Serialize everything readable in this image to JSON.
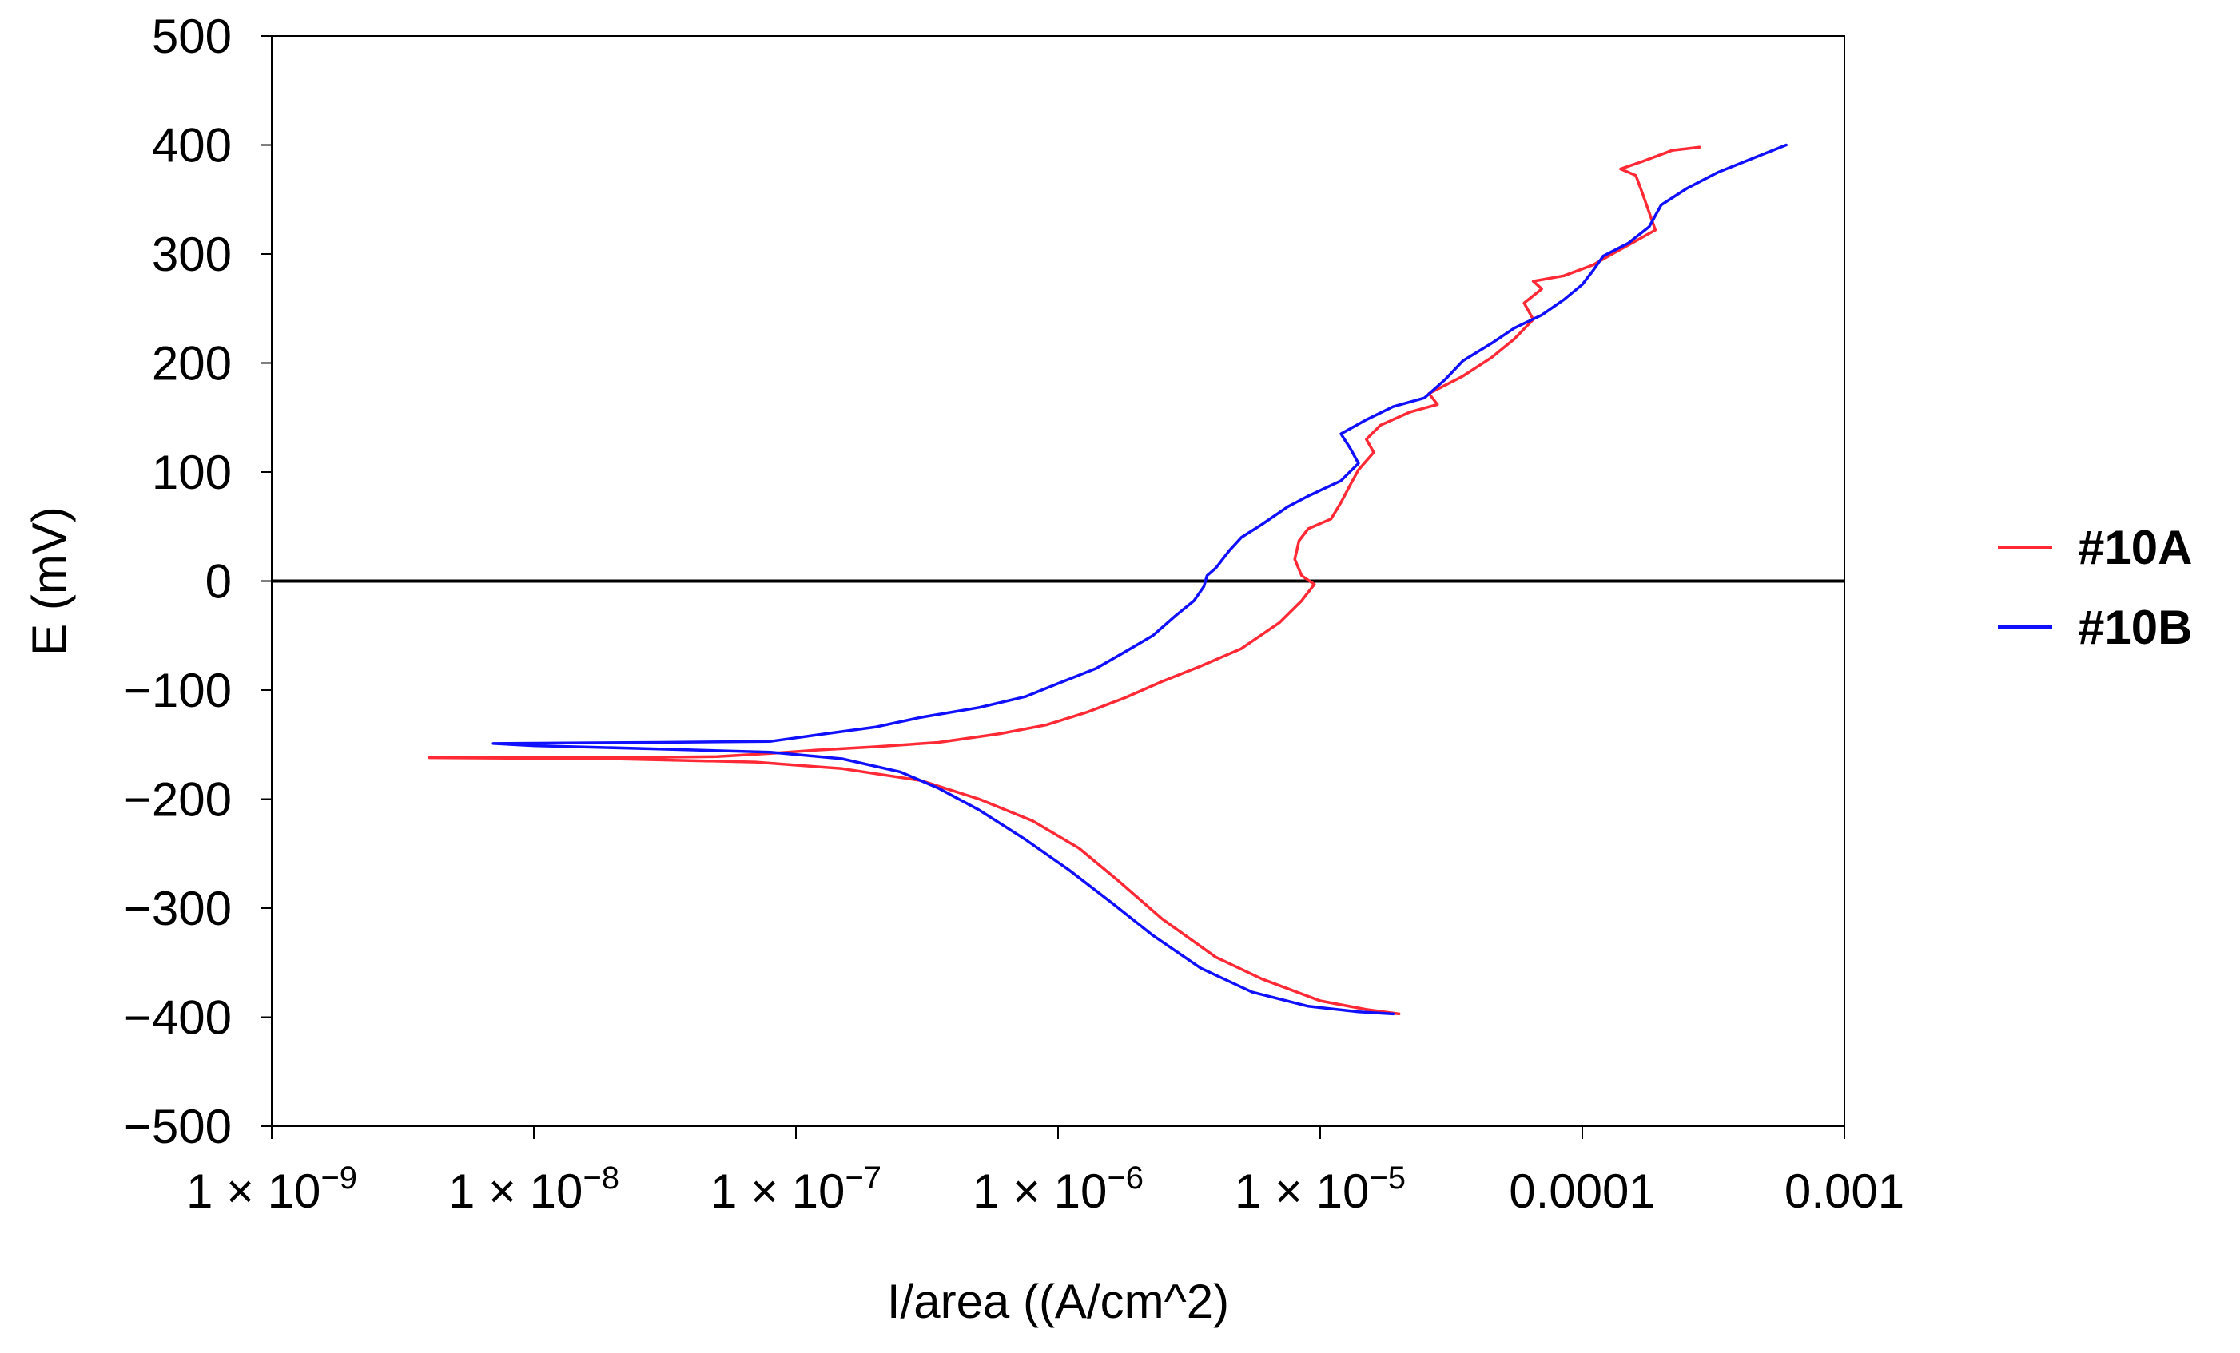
{
  "chart_data": {
    "type": "line",
    "title": "",
    "xlabel": "I/area ((A/cm^2)",
    "ylabel": "E (mV)",
    "xscale": "log",
    "xlim": [
      1e-09,
      0.001
    ],
    "ylim": [
      -500,
      500
    ],
    "x_ticks": [
      {
        "value": 1e-09,
        "base": "1 × 10",
        "exp": "−9"
      },
      {
        "value": 1e-08,
        "base": "1 × 10",
        "exp": "−8"
      },
      {
        "value": 1e-07,
        "base": "1 × 10",
        "exp": "−7"
      },
      {
        "value": 1e-06,
        "base": "1 × 10",
        "exp": "−6"
      },
      {
        "value": 1e-05,
        "base": "1 × 10",
        "exp": "−5"
      },
      {
        "value": 0.0001,
        "base": "0.0001",
        "exp": ""
      },
      {
        "value": 0.001,
        "base": "0.001",
        "exp": ""
      }
    ],
    "y_ticks": [
      {
        "value": 500,
        "label": "500"
      },
      {
        "value": 400,
        "label": "400"
      },
      {
        "value": 300,
        "label": "300"
      },
      {
        "value": 200,
        "label": "200"
      },
      {
        "value": 100,
        "label": "100"
      },
      {
        "value": 0,
        "label": "0"
      },
      {
        "value": -100,
        "label": "−100"
      },
      {
        "value": -200,
        "label": "−200"
      },
      {
        "value": -300,
        "label": "−300"
      },
      {
        "value": -400,
        "label": "−400"
      },
      {
        "value": -500,
        "label": "−500"
      }
    ],
    "reference_line": {
      "y": 0,
      "color": "#000000"
    },
    "legend": "right",
    "series": [
      {
        "name": "#10A",
        "color": "#ff2a35",
        "points": [
          [
            2e-05,
            -397
          ],
          [
            1.5e-05,
            -393
          ],
          [
            1e-05,
            -385
          ],
          [
            6e-06,
            -365
          ],
          [
            4e-06,
            -345
          ],
          [
            2.5e-06,
            -310
          ],
          [
            1.7e-06,
            -275
          ],
          [
            1.2e-06,
            -245
          ],
          [
            8e-07,
            -220
          ],
          [
            5e-07,
            -200
          ],
          [
            3e-07,
            -183
          ],
          [
            1.5e-07,
            -172
          ],
          [
            7e-08,
            -166
          ],
          [
            2e-08,
            -163
          ],
          [
            4e-09,
            -162
          ],
          [
            4e-09,
            -162
          ],
          [
            2e-08,
            -162
          ],
          [
            5e-08,
            -161
          ],
          [
            8e-08,
            -158
          ],
          [
            1.2e-07,
            -155
          ],
          [
            2e-07,
            -152
          ],
          [
            3.5e-07,
            -148
          ],
          [
            6e-07,
            -140
          ],
          [
            9e-07,
            -132
          ],
          [
            1.3e-06,
            -120
          ],
          [
            1.8e-06,
            -107
          ],
          [
            2.5e-06,
            -92
          ],
          [
            3.5e-06,
            -78
          ],
          [
            5e-06,
            -62
          ],
          [
            7e-06,
            -38
          ],
          [
            8.5e-06,
            -18
          ],
          [
            9.5e-06,
            -3
          ],
          [
            8.5e-06,
            5
          ],
          [
            8e-06,
            20
          ],
          [
            8.3e-06,
            37
          ],
          [
            9e-06,
            48
          ],
          [
            1.1e-05,
            57
          ],
          [
            1.2e-05,
            72
          ],
          [
            1.3e-05,
            88
          ],
          [
            1.4e-05,
            102
          ],
          [
            1.6e-05,
            118
          ],
          [
            1.5e-05,
            130
          ],
          [
            1.7e-05,
            143
          ],
          [
            2.2e-05,
            155
          ],
          [
            2.8e-05,
            162
          ],
          [
            2.6e-05,
            172
          ],
          [
            3.5e-05,
            188
          ],
          [
            4.5e-05,
            205
          ],
          [
            5.5e-05,
            222
          ],
          [
            6.5e-05,
            240
          ],
          [
            6e-05,
            255
          ],
          [
            7e-05,
            268
          ],
          [
            6.5e-05,
            275
          ],
          [
            8.5e-05,
            280
          ],
          [
            0.00011,
            290
          ],
          [
            0.00013,
            300
          ],
          [
            0.00016,
            312
          ],
          [
            0.00019,
            322
          ],
          [
            0.00018,
            338
          ],
          [
            0.00017,
            355
          ],
          [
            0.00016,
            372
          ],
          [
            0.00014,
            378
          ],
          [
            0.00017,
            385
          ],
          [
            0.00022,
            395
          ],
          [
            0.00028,
            398
          ]
        ]
      },
      {
        "name": "#10B",
        "color": "#1010ff",
        "points": [
          [
            1.9e-05,
            -397
          ],
          [
            1.4e-05,
            -395
          ],
          [
            9e-06,
            -390
          ],
          [
            5.5e-06,
            -377
          ],
          [
            3.5e-06,
            -355
          ],
          [
            2.3e-06,
            -325
          ],
          [
            1.6e-06,
            -295
          ],
          [
            1.1e-06,
            -265
          ],
          [
            7.5e-07,
            -237
          ],
          [
            5e-07,
            -210
          ],
          [
            3.5e-07,
            -190
          ],
          [
            2.5e-07,
            -175
          ],
          [
            1.5e-07,
            -163
          ],
          [
            8e-08,
            -157
          ],
          [
            3e-08,
            -154
          ],
          [
            1e-08,
            -151
          ],
          [
            7e-09,
            -149
          ],
          [
            3e-08,
            -148
          ],
          [
            8e-08,
            -147
          ],
          [
            1.3e-07,
            -140
          ],
          [
            2e-07,
            -134
          ],
          [
            3e-07,
            -125
          ],
          [
            5e-07,
            -116
          ],
          [
            7.5e-07,
            -106
          ],
          [
            1e-06,
            -94
          ],
          [
            1.4e-06,
            -80
          ],
          [
            1.8e-06,
            -65
          ],
          [
            2.3e-06,
            -50
          ],
          [
            2.8e-06,
            -32
          ],
          [
            3.3e-06,
            -18
          ],
          [
            3.6e-06,
            -5
          ],
          [
            3.7e-06,
            5
          ],
          [
            4e-06,
            12
          ],
          [
            4.5e-06,
            28
          ],
          [
            5e-06,
            40
          ],
          [
            6e-06,
            52
          ],
          [
            7.5e-06,
            68
          ],
          [
            9e-06,
            78
          ],
          [
            1.2e-05,
            92
          ],
          [
            1.4e-05,
            108
          ],
          [
            1.3e-05,
            122
          ],
          [
            1.2e-05,
            135
          ],
          [
            1.5e-05,
            148
          ],
          [
            1.9e-05,
            160
          ],
          [
            2.5e-05,
            168
          ],
          [
            3e-05,
            185
          ],
          [
            3.5e-05,
            202
          ],
          [
            4.5e-05,
            218
          ],
          [
            5.5e-05,
            232
          ],
          [
            7e-05,
            244
          ],
          [
            8.5e-05,
            258
          ],
          [
            0.0001,
            272
          ],
          [
            0.00011,
            285
          ],
          [
            0.00012,
            298
          ],
          [
            0.00015,
            310
          ],
          [
            0.00018,
            325
          ],
          [
            0.0002,
            345
          ],
          [
            0.00025,
            360
          ],
          [
            0.00033,
            375
          ],
          [
            0.00045,
            388
          ],
          [
            0.0006,
            400
          ]
        ]
      }
    ]
  }
}
